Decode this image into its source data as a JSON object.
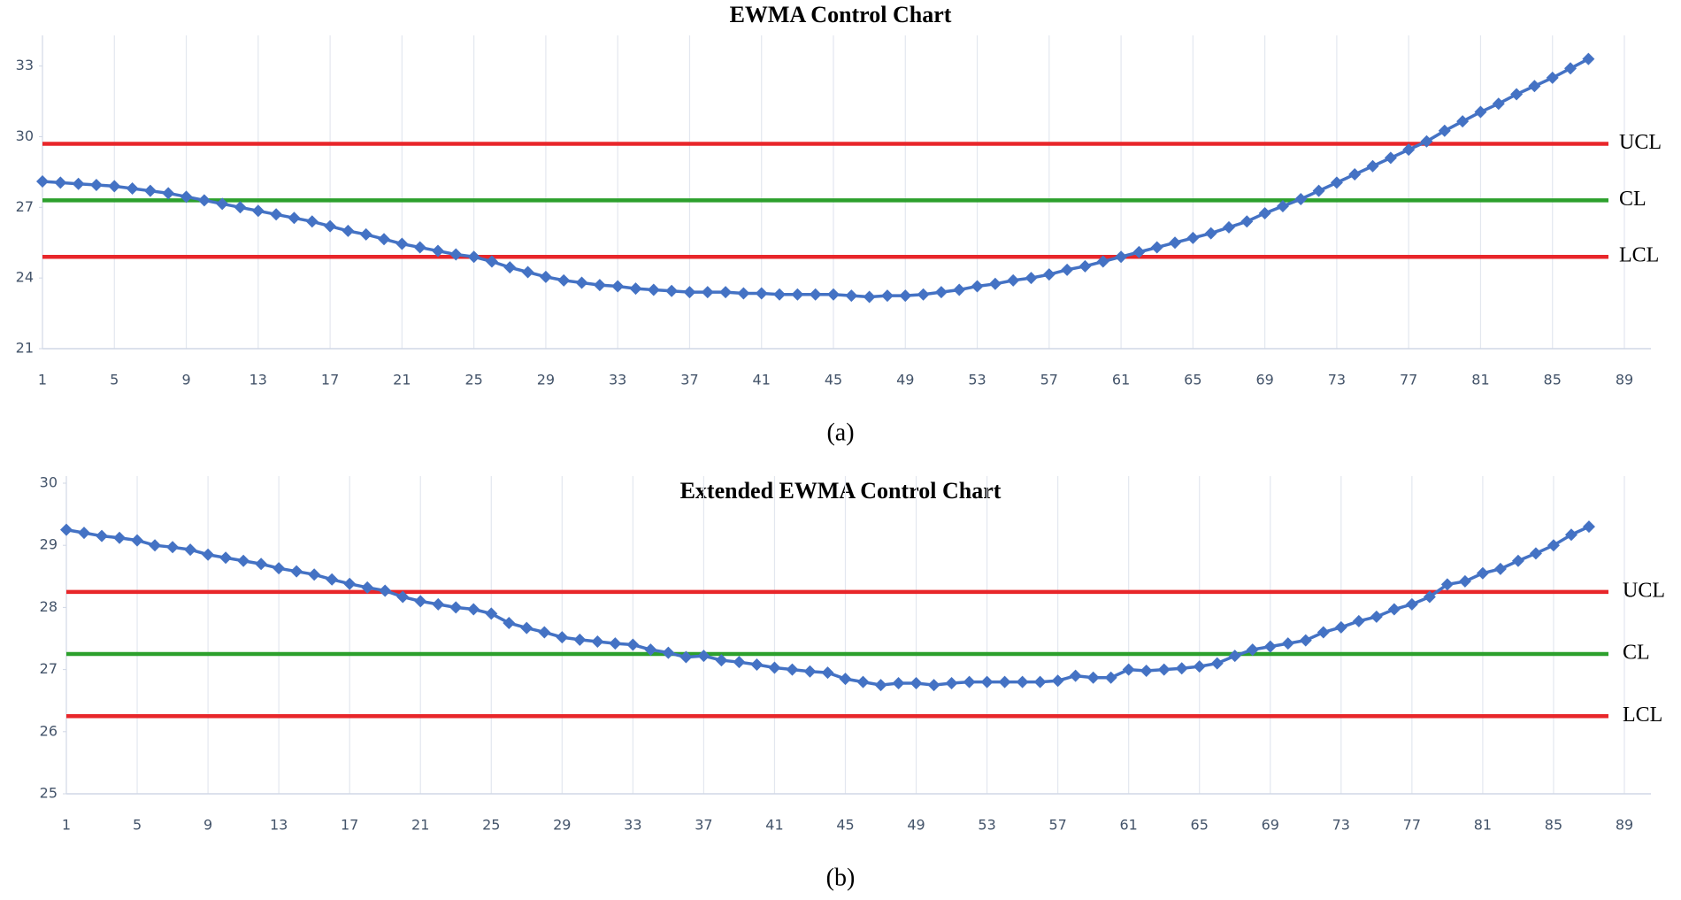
{
  "chart_data": [
    {
      "type": "line",
      "title": "EWMA Control Chart",
      "caption": "(a)",
      "x": [
        1,
        2,
        3,
        4,
        5,
        6,
        7,
        8,
        9,
        10,
        11,
        12,
        13,
        14,
        15,
        16,
        17,
        18,
        19,
        20,
        21,
        22,
        23,
        24,
        25,
        26,
        27,
        28,
        29,
        30,
        31,
        32,
        33,
        34,
        35,
        36,
        37,
        38,
        39,
        40,
        41,
        42,
        43,
        44,
        45,
        46,
        47,
        48,
        49,
        50,
        51,
        52,
        53,
        54,
        55,
        56,
        57,
        58,
        59,
        60,
        61,
        62,
        63,
        64,
        65,
        66,
        67,
        68,
        69,
        70,
        71,
        72,
        73,
        74,
        75,
        76,
        77,
        78,
        79,
        80,
        81,
        82,
        83,
        84,
        85,
        86,
        87
      ],
      "series": [
        {
          "color": "#4472c4",
          "values": [
            28.1,
            28.05,
            28.0,
            27.95,
            27.9,
            27.8,
            27.7,
            27.6,
            27.45,
            27.3,
            27.15,
            27.0,
            26.85,
            26.7,
            26.55,
            26.4,
            26.2,
            26.0,
            25.85,
            25.65,
            25.45,
            25.3,
            25.15,
            25.0,
            24.9,
            24.7,
            24.45,
            24.25,
            24.05,
            23.9,
            23.8,
            23.7,
            23.65,
            23.55,
            23.5,
            23.45,
            23.4,
            23.4,
            23.4,
            23.35,
            23.35,
            23.3,
            23.3,
            23.3,
            23.3,
            23.25,
            23.2,
            23.25,
            23.25,
            23.3,
            23.4,
            23.5,
            23.65,
            23.75,
            23.9,
            24.0,
            24.15,
            24.35,
            24.5,
            24.7,
            24.9,
            25.1,
            25.3,
            25.5,
            25.7,
            25.9,
            26.15,
            26.4,
            26.75,
            27.05,
            27.35,
            27.7,
            28.05,
            28.4,
            28.75,
            29.1,
            29.45,
            29.8,
            30.25,
            30.65,
            31.05,
            31.4,
            31.8,
            32.15,
            32.5,
            32.9,
            33.3
          ]
        }
      ],
      "control_limits": [
        {
          "name": "UCL",
          "value": 29.7,
          "color": "#e8262a"
        },
        {
          "name": "CL",
          "value": 27.3,
          "color": "#2ca02c"
        },
        {
          "name": "LCL",
          "value": 24.9,
          "color": "#e8262a"
        }
      ],
      "xlim": [
        1,
        89
      ],
      "xticks": [
        1,
        5,
        9,
        13,
        17,
        21,
        25,
        29,
        33,
        37,
        41,
        45,
        49,
        53,
        57,
        61,
        65,
        69,
        73,
        77,
        81,
        85,
        89
      ],
      "ylim": [
        21,
        34
      ],
      "yticks": [
        21,
        24,
        27,
        30,
        33
      ],
      "grid": true
    },
    {
      "type": "line",
      "title": "Extended EWMA Control Chart",
      "caption": "(b)",
      "x": [
        1,
        2,
        3,
        4,
        5,
        6,
        7,
        8,
        9,
        10,
        11,
        12,
        13,
        14,
        15,
        16,
        17,
        18,
        19,
        20,
        21,
        22,
        23,
        24,
        25,
        26,
        27,
        28,
        29,
        30,
        31,
        32,
        33,
        34,
        35,
        36,
        37,
        38,
        39,
        40,
        41,
        42,
        43,
        44,
        45,
        46,
        47,
        48,
        49,
        50,
        51,
        52,
        53,
        54,
        55,
        56,
        57,
        58,
        59,
        60,
        61,
        62,
        63,
        64,
        65,
        66,
        67,
        68,
        69,
        70,
        71,
        72,
        73,
        74,
        75,
        76,
        77,
        78,
        79,
        80,
        81,
        82,
        83,
        84,
        85,
        86,
        87
      ],
      "series": [
        {
          "color": "#4472c4",
          "values": [
            29.25,
            29.2,
            29.15,
            29.12,
            29.08,
            29.0,
            28.97,
            28.93,
            28.85,
            28.8,
            28.75,
            28.7,
            28.63,
            28.58,
            28.53,
            28.45,
            28.38,
            28.32,
            28.27,
            28.17,
            28.1,
            28.05,
            28.0,
            27.97,
            27.9,
            27.75,
            27.67,
            27.6,
            27.52,
            27.48,
            27.45,
            27.42,
            27.4,
            27.32,
            27.27,
            27.2,
            27.22,
            27.15,
            27.12,
            27.08,
            27.03,
            27.0,
            26.97,
            26.95,
            26.85,
            26.8,
            26.75,
            26.78,
            26.78,
            26.75,
            26.78,
            26.8,
            26.8,
            26.8,
            26.8,
            26.8,
            26.82,
            26.9,
            26.87,
            26.87,
            27.0,
            26.98,
            27.0,
            27.02,
            27.05,
            27.1,
            27.22,
            27.32,
            27.37,
            27.42,
            27.47,
            27.6,
            27.68,
            27.78,
            27.85,
            27.97,
            28.05,
            28.17,
            28.37,
            28.42,
            28.55,
            28.62,
            28.75,
            28.87,
            29.0,
            29.17,
            29.3
          ]
        }
      ],
      "control_limits": [
        {
          "name": "UCL",
          "value": 28.25,
          "color": "#e8262a"
        },
        {
          "name": "CL",
          "value": 27.25,
          "color": "#2ca02c"
        },
        {
          "name": "LCL",
          "value": 26.25,
          "color": "#e8262a"
        }
      ],
      "xlim": [
        1,
        89
      ],
      "xticks": [
        1,
        5,
        9,
        13,
        17,
        21,
        25,
        29,
        33,
        37,
        41,
        45,
        49,
        53,
        57,
        61,
        65,
        69,
        73,
        77,
        81,
        85,
        89
      ],
      "ylim": [
        25,
        30
      ],
      "yticks": [
        25,
        26,
        27,
        28,
        29,
        30
      ],
      "grid": true
    }
  ]
}
